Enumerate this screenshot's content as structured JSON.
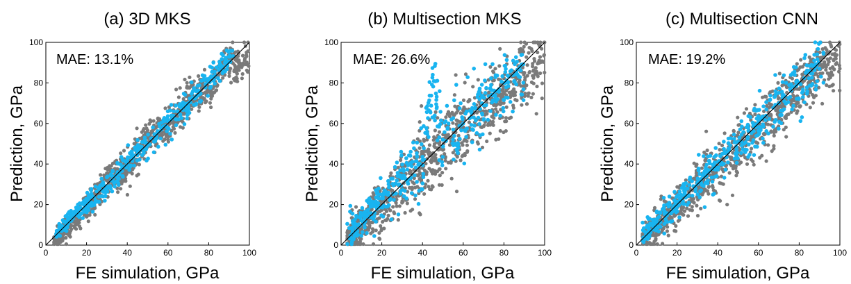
{
  "colors": {
    "gray_series": "#7a7a7a",
    "blue_series": "#19b4f0",
    "diagonal": "#000000",
    "frame": "#000000"
  },
  "panels": [
    {
      "title": "(a) 3D MKS",
      "mae": "MAE: 13.1%"
    },
    {
      "title": "(b) Multisection MKS",
      "mae": "MAE: 26.6%"
    },
    {
      "title": "(c) Multisection CNN",
      "mae": "MAE: 19.2%"
    }
  ],
  "chart_data": [
    {
      "type": "scatter",
      "title": "(a) 3D MKS",
      "annotation": "MAE: 13.1%",
      "xlabel": "FE simulation, GPa",
      "ylabel": "Prediction, GPa",
      "xlim": [
        0,
        100
      ],
      "ylim": [
        0,
        100
      ],
      "xticks": [
        0,
        20,
        40,
        60,
        80,
        100
      ],
      "yticks": [
        0,
        20,
        40,
        60,
        80,
        100
      ],
      "reference_line": "y = x",
      "grid": false,
      "series": [
        {
          "color": "#7a7a7a",
          "spread": 4.5,
          "x_range": [
            4,
            100
          ],
          "values": [
            [
              10,
              8
            ],
            [
              20,
              17
            ],
            [
              30,
              32
            ],
            [
              40,
              37
            ],
            [
              50,
              54
            ],
            [
              60,
              58
            ],
            [
              70,
              73
            ],
            [
              80,
              76
            ],
            [
              90,
              93
            ],
            [
              95,
              88
            ]
          ]
        },
        {
          "color": "#19b4f0",
          "spread": 3.5,
          "x_range": [
            5,
            92
          ],
          "values": [
            [
              10,
              11
            ],
            [
              20,
              21
            ],
            [
              30,
              29
            ],
            [
              40,
              41
            ],
            [
              50,
              50
            ],
            [
              60,
              61
            ],
            [
              70,
              70
            ],
            [
              80,
              82
            ],
            [
              88,
              90
            ]
          ]
        }
      ]
    },
    {
      "type": "scatter",
      "title": "(b) Multisection MKS",
      "annotation": "MAE: 26.6%",
      "xlabel": "FE simulation, GPa",
      "ylabel": "Prediction, GPa",
      "xlim": [
        0,
        100
      ],
      "ylim": [
        0,
        100
      ],
      "xticks": [
        0,
        20,
        40,
        60,
        80,
        100
      ],
      "yticks": [
        0,
        20,
        40,
        60,
        80,
        100
      ],
      "reference_line": "y = x",
      "grid": false,
      "series": [
        {
          "color": "#7a7a7a",
          "spread": 9,
          "x_range": [
            3,
            100
          ],
          "values": [
            [
              10,
              9
            ],
            [
              20,
              19
            ],
            [
              30,
              28
            ],
            [
              40,
              38
            ],
            [
              50,
              47
            ],
            [
              60,
              58
            ],
            [
              70,
              66
            ],
            [
              80,
              75
            ],
            [
              90,
              85
            ],
            [
              97,
              90
            ]
          ]
        },
        {
          "color": "#19b4f0",
          "spread": 8,
          "x_range": [
            3,
            90
          ],
          "values": [
            [
              10,
              12
            ],
            [
              20,
              23
            ],
            [
              30,
              33
            ],
            [
              40,
              42
            ],
            [
              45,
              84
            ],
            [
              50,
              52
            ],
            [
              60,
              60
            ],
            [
              70,
              69
            ],
            [
              80,
              80
            ]
          ]
        }
      ]
    },
    {
      "type": "scatter",
      "title": "(c) Multisection CNN",
      "annotation": "MAE: 19.2%",
      "xlabel": "FE simulation, GPa",
      "ylabel": "Prediction, GPa",
      "xlim": [
        0,
        100
      ],
      "ylim": [
        0,
        100
      ],
      "xticks": [
        0,
        20,
        40,
        60,
        80,
        100
      ],
      "yticks": [
        0,
        20,
        40,
        60,
        80,
        100
      ],
      "reference_line": "y = x",
      "grid": false,
      "series": [
        {
          "color": "#7a7a7a",
          "spread": 7,
          "x_range": [
            3,
            100
          ],
          "values": [
            [
              10,
              10
            ],
            [
              20,
              19
            ],
            [
              30,
              29
            ],
            [
              40,
              39
            ],
            [
              50,
              48
            ],
            [
              60,
              58
            ],
            [
              70,
              68
            ],
            [
              80,
              77
            ],
            [
              90,
              87
            ],
            [
              98,
              92
            ]
          ]
        },
        {
          "color": "#19b4f0",
          "spread": 6,
          "x_range": [
            3,
            92
          ],
          "values": [
            [
              10,
              11
            ],
            [
              20,
              21
            ],
            [
              30,
              31
            ],
            [
              40,
              41
            ],
            [
              50,
              51
            ],
            [
              60,
              61
            ],
            [
              70,
              70
            ],
            [
              80,
              80
            ],
            [
              90,
              87
            ]
          ]
        }
      ]
    }
  ]
}
